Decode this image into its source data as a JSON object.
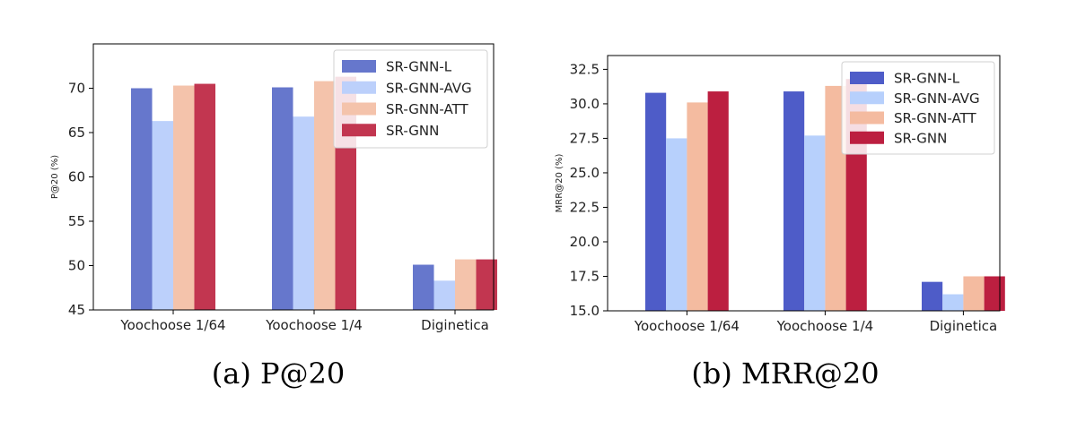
{
  "chart_data": [
    {
      "type": "bar",
      "title": "",
      "caption": "(a) P@20",
      "xlabel": "",
      "ylabel": "P@20 (%)",
      "ylim": [
        45,
        75
      ],
      "yticks": [
        45,
        50,
        55,
        60,
        65,
        70
      ],
      "categories": [
        "Yoochoose 1/64",
        "Yoochoose 1/4",
        "Diginetica"
      ],
      "series": [
        {
          "name": "SR-GNN-L",
          "color": "#6677cc",
          "values": [
            70.0,
            70.1,
            50.1
          ]
        },
        {
          "name": "SR-GNN-AVG",
          "color": "#bcd0fb",
          "values": [
            66.3,
            66.8,
            48.3
          ]
        },
        {
          "name": "SR-GNN-ATT",
          "color": "#f4c3ab",
          "values": [
            70.3,
            70.8,
            50.7
          ]
        },
        {
          "name": "SR-GNN",
          "color": "#c23650",
          "values": [
            70.5,
            71.3,
            50.7
          ]
        }
      ],
      "legend_position": "top-right",
      "grid": false
    },
    {
      "type": "bar",
      "title": "",
      "caption": "(b) MRR@20",
      "xlabel": "",
      "ylabel": "MRR@20 (%)",
      "ylim": [
        15.0,
        33.5
      ],
      "yticks": [
        "15.0",
        "17.5",
        "20.0",
        "22.5",
        "25.0",
        "27.5",
        "30.0",
        "32.5"
      ],
      "categories": [
        "Yoochoose 1/64",
        "Yoochoose 1/4",
        "Diginetica"
      ],
      "series": [
        {
          "name": "SR-GNN-L",
          "color": "#4e5cc8",
          "values": [
            30.8,
            30.9,
            17.1
          ]
        },
        {
          "name": "SR-GNN-AVG",
          "color": "#b7d0fc",
          "values": [
            27.5,
            27.7,
            16.2
          ]
        },
        {
          "name": "SR-GNN-ATT",
          "color": "#f4bba0",
          "values": [
            30.1,
            31.3,
            17.5
          ]
        },
        {
          "name": "SR-GNN",
          "color": "#bc1f40",
          "values": [
            30.9,
            31.8,
            17.5
          ]
        }
      ],
      "legend_position": "top-right",
      "grid": false
    }
  ]
}
